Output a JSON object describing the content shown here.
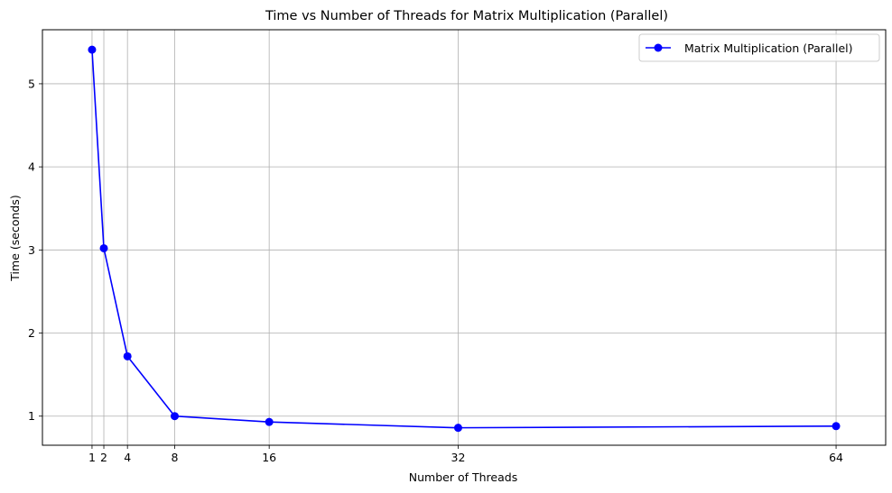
{
  "chart_data": {
    "type": "line",
    "title": "Time vs Number of Threads for Matrix Multiplication (Parallel)",
    "xlabel": "Number of Threads",
    "ylabel": "Time (seconds)",
    "xlim": [
      -3.2,
      68.2
    ],
    "ylim": [
      0.65,
      5.65
    ],
    "xticks": [
      1,
      2,
      4,
      8,
      16,
      32,
      64
    ],
    "yticks": [
      1,
      2,
      3,
      4,
      5
    ],
    "grid": true,
    "legend_position": "top-right",
    "series": [
      {
        "name": "Matrix Multiplication (Parallel)",
        "color": "#0000ff",
        "marker": "circle",
        "x": [
          1,
          2,
          4,
          8,
          16,
          32,
          64
        ],
        "y": [
          5.41,
          3.02,
          1.72,
          1.0,
          0.93,
          0.86,
          0.88
        ]
      }
    ]
  }
}
